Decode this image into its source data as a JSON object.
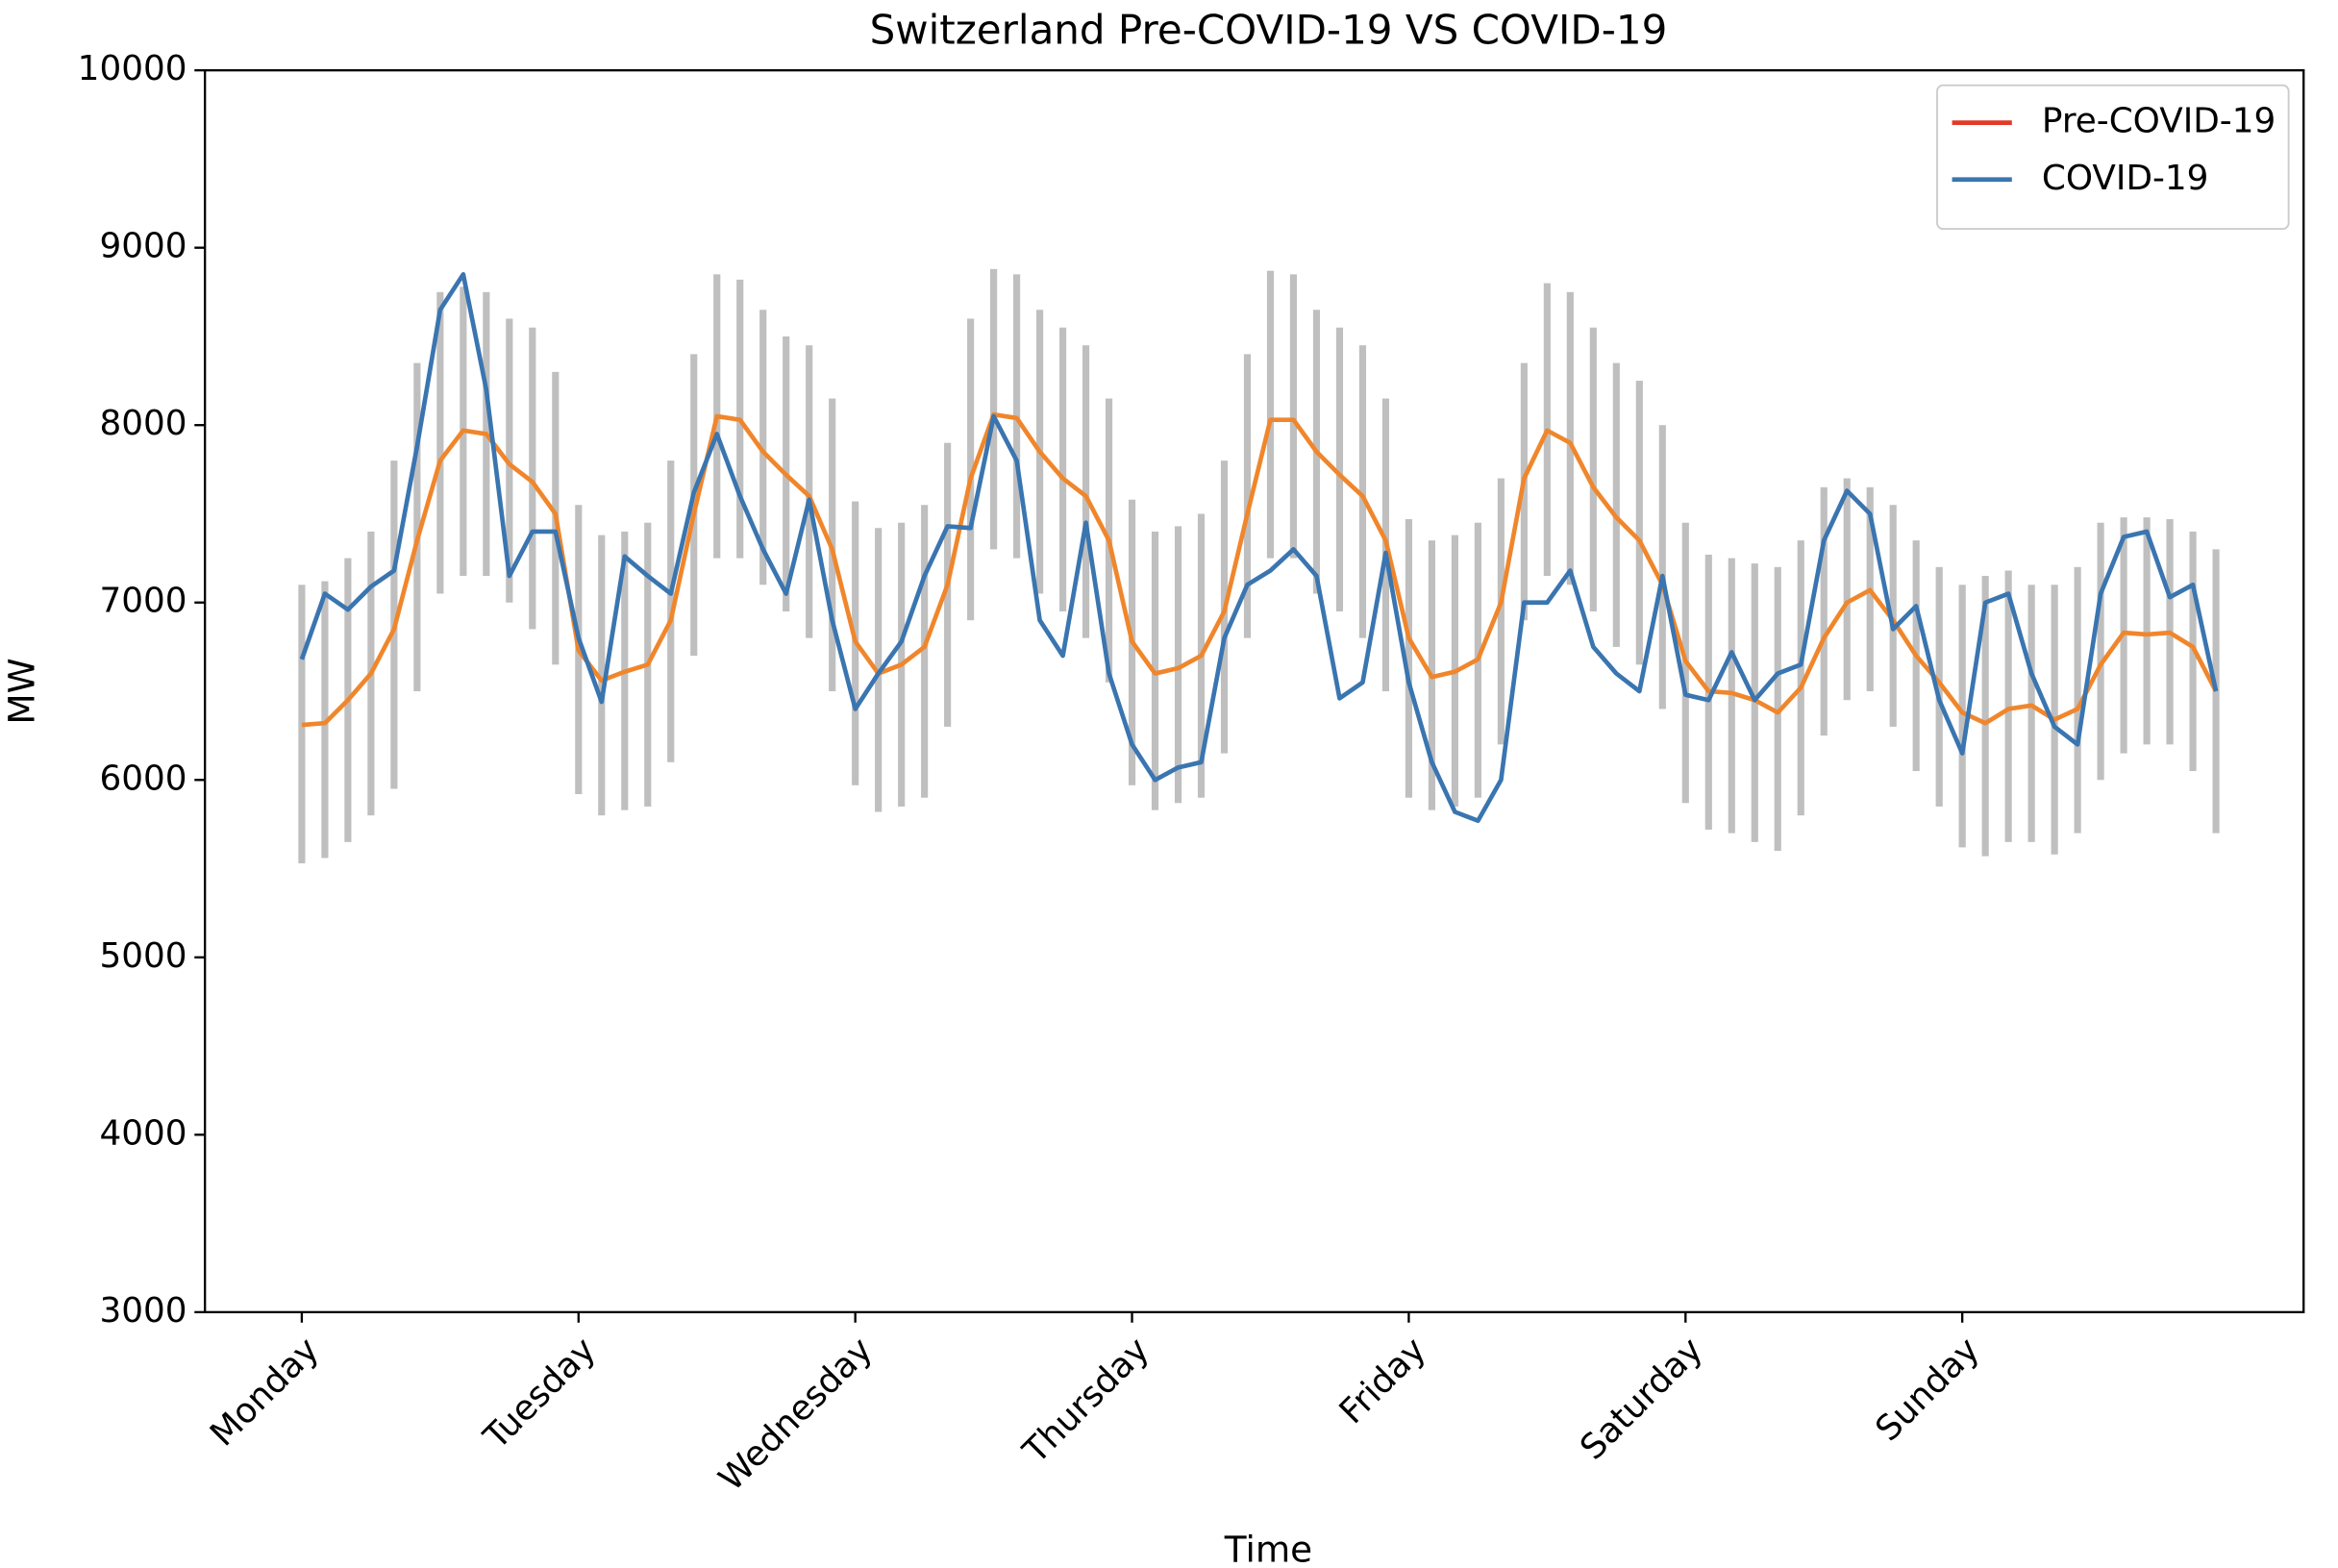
{
  "chart_data": {
    "type": "line",
    "title": "Switzerland Pre-COVID-19 VS COVID-19",
    "x_label": "Time",
    "y_label": "MW",
    "xlim": [
      -8.4,
      173.6
    ],
    "ylim": [
      3000,
      10000
    ],
    "xticks": [
      {
        "value": 0,
        "label": "Monday"
      },
      {
        "value": 24,
        "label": "Tuesday"
      },
      {
        "value": 48,
        "label": "Wednesday"
      },
      {
        "value": 72,
        "label": "Thursday"
      },
      {
        "value": 96,
        "label": "Friday"
      },
      {
        "value": 120,
        "label": "Saturday"
      },
      {
        "value": 144,
        "label": "Sunday"
      }
    ],
    "yticks": [
      3000,
      4000,
      5000,
      6000,
      7000,
      8000,
      9000,
      10000
    ],
    "legend": "upper right",
    "x": [
      0,
      2,
      4,
      6,
      8,
      10,
      12,
      14,
      16,
      18,
      20,
      22,
      24,
      26,
      28,
      30,
      32,
      34,
      36,
      38,
      40,
      42,
      44,
      46,
      48,
      50,
      52,
      54,
      56,
      58,
      60,
      62,
      64,
      66,
      68,
      70,
      72,
      74,
      76,
      78,
      80,
      82,
      84,
      86,
      88,
      90,
      92,
      94,
      96,
      98,
      100,
      102,
      104,
      106,
      108,
      110,
      112,
      114,
      116,
      118,
      120,
      122,
      124,
      126,
      128,
      130,
      132,
      134,
      136,
      138,
      140,
      142,
      144,
      146,
      148,
      150,
      152,
      154,
      156,
      158,
      160,
      162,
      164,
      166
    ],
    "range_color": "#bfbfbf",
    "range_low": [
      5530,
      5560,
      5650,
      5800,
      5950,
      6500,
      7050,
      7150,
      7150,
      7000,
      6850,
      6650,
      5920,
      5800,
      5830,
      5850,
      6100,
      6700,
      7250,
      7250,
      7100,
      6950,
      6800,
      6500,
      5970,
      5820,
      5850,
      5900,
      6300,
      6900,
      7300,
      7250,
      7050,
      6950,
      6800,
      6550,
      5970,
      5830,
      5870,
      5900,
      6150,
      6800,
      7250,
      7250,
      7050,
      6950,
      6800,
      6500,
      5900,
      5830,
      5850,
      5900,
      6200,
      6900,
      7150,
      7100,
      6950,
      6750,
      6650,
      6400,
      5870,
      5720,
      5700,
      5650,
      5600,
      5800,
      6250,
      6450,
      6500,
      6300,
      6050,
      5850,
      5620,
      5570,
      5650,
      5650,
      5580,
      5700,
      6000,
      6150,
      6200,
      6200,
      6050,
      5700
    ],
    "range_high": [
      7100,
      7120,
      7250,
      7400,
      7800,
      8350,
      8750,
      8780,
      8750,
      8600,
      8550,
      8300,
      7550,
      7380,
      7400,
      7450,
      7800,
      8400,
      8850,
      8820,
      8650,
      8500,
      8450,
      8150,
      7570,
      7420,
      7450,
      7550,
      7900,
      8600,
      8880,
      8850,
      8650,
      8550,
      8450,
      8150,
      7580,
      7400,
      7430,
      7500,
      7800,
      8400,
      8870,
      8850,
      8650,
      8550,
      8450,
      8150,
      7470,
      7350,
      7380,
      7450,
      7700,
      8350,
      8800,
      8750,
      8550,
      8350,
      8250,
      8000,
      7450,
      7270,
      7250,
      7220,
      7200,
      7350,
      7650,
      7700,
      7650,
      7550,
      7350,
      7200,
      7100,
      7150,
      7180,
      7100,
      7100,
      7200,
      7450,
      7480,
      7480,
      7470,
      7400,
      7300
    ],
    "series": [
      {
        "name": "Pre-COVID-19",
        "color": "#f0862c",
        "legend_color": "#e23a28",
        "values": [
          6310,
          6320,
          6450,
          6600,
          6850,
          7350,
          7800,
          7970,
          7950,
          7780,
          7680,
          7500,
          6730,
          6560,
          6610,
          6650,
          6900,
          7500,
          8050,
          8030,
          7850,
          7720,
          7600,
          7300,
          6780,
          6600,
          6650,
          6750,
          7100,
          7700,
          8060,
          8040,
          7850,
          7700,
          7600,
          7350,
          6780,
          6600,
          6630,
          6700,
          6950,
          7500,
          8030,
          8030,
          7850,
          7720,
          7600,
          7350,
          6800,
          6580,
          6610,
          6680,
          7000,
          7700,
          7970,
          7900,
          7650,
          7480,
          7350,
          7100,
          6670,
          6500,
          6490,
          6450,
          6380,
          6520,
          6800,
          7000,
          7070,
          6900,
          6700,
          6550,
          6380,
          6320,
          6400,
          6420,
          6340,
          6400,
          6650,
          6830,
          6820,
          6830,
          6750,
          6500
        ]
      },
      {
        "name": "COVID-19",
        "color": "#3a75b0",
        "values": [
          6680,
          7050,
          6960,
          7090,
          7180,
          7880,
          8650,
          8850,
          8200,
          7150,
          7400,
          7400,
          6800,
          6440,
          7260,
          7150,
          7050,
          7620,
          7950,
          7600,
          7300,
          7050,
          7580,
          6900,
          6400,
          6600,
          6780,
          7150,
          7430,
          7420,
          8050,
          7800,
          6900,
          6700,
          7450,
          6600,
          6200,
          6000,
          6070,
          6100,
          6800,
          7100,
          7180,
          7300,
          7150,
          6460,
          6550,
          7280,
          6550,
          6100,
          5820,
          5770,
          6000,
          7000,
          7000,
          7180,
          6750,
          6600,
          6500,
          7150,
          6480,
          6450,
          6720,
          6450,
          6600,
          6650,
          7350,
          7630,
          7500,
          6850,
          6980,
          6450,
          6150,
          7000,
          7050,
          6600,
          6300,
          6200,
          7050,
          7370,
          7400,
          7030,
          7100,
          6500
        ]
      }
    ]
  }
}
